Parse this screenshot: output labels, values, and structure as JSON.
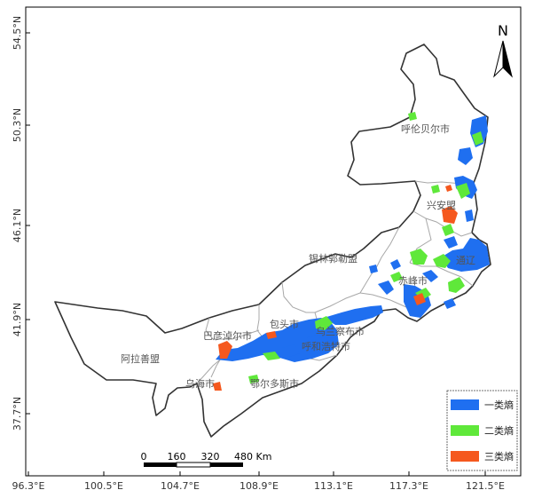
{
  "map": {
    "x_ticks": [
      "96.3°E",
      "100.5°E",
      "104.7°E",
      "108.9°E",
      "113.1°E",
      "117.3°E",
      "121.5°E"
    ],
    "y_ticks": [
      "54.5°N",
      "50.3°N",
      "46.1°N",
      "41.9°N",
      "37.7°N"
    ],
    "places": {
      "hulunbuir": "呼伦贝尔市",
      "hinggan": "兴安盟",
      "tongliao": "通辽",
      "xilingol": "锡林郭勒盟",
      "chifeng": "赤峰市",
      "baotou": "包头市",
      "ulanqab": "乌兰察布市",
      "hohhot": "呼和浩特市",
      "bayannur": "巴彦淖尔市",
      "alxa": "阿拉善盟",
      "wuhai": "乌海市",
      "ordos": "鄂尔多斯市"
    },
    "north_label": "N",
    "scale_labels": [
      "0",
      "160",
      "320",
      "480 Km"
    ],
    "legend": [
      {
        "label": "一类熵",
        "color": "#1f6ff0"
      },
      {
        "label": "二类熵",
        "color": "#5fe83a"
      },
      {
        "label": "三类熵",
        "color": "#f5581e"
      }
    ],
    "colors": {
      "boundary": "#333333",
      "inner_boundary": "#a0a0a0",
      "class1": "#1f6ff0",
      "class2": "#5fe83a",
      "class3": "#f5581e"
    }
  }
}
